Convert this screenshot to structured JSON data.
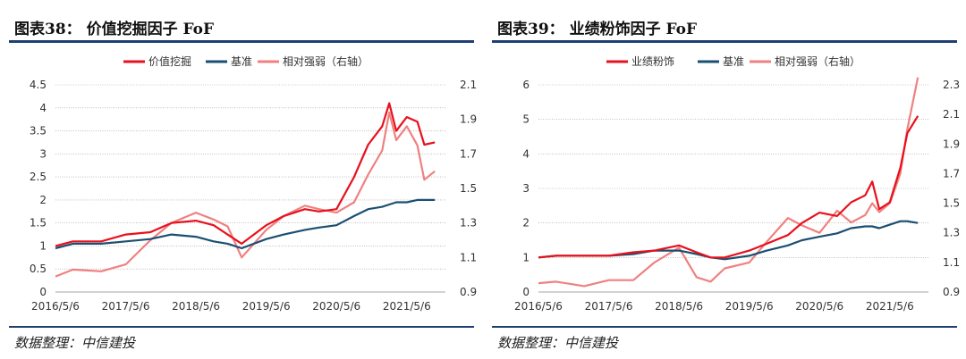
{
  "colors": {
    "rule": "#1f3f73",
    "factor": "#e8101c",
    "base": "#1b4f72",
    "rel": "#f08080"
  },
  "panels": [
    {
      "title": "图表38：  价值挖掘因子 FoF",
      "source": "数据整理：中信建投",
      "chart_data": {
        "type": "line",
        "legend": [
          "价值挖掘",
          "基准",
          "相对强弱（右轴）"
        ],
        "xticks": [
          "2016/5/6",
          "2017/5/6",
          "2018/5/6",
          "2019/5/6",
          "2020/5/6",
          "2021/5/6"
        ],
        "yticks_left": [
          "0",
          "0.5",
          "1",
          "1.5",
          "2",
          "2.5",
          "3",
          "3.5",
          "4",
          "4.5"
        ],
        "ylim_left": [
          0,
          4.5
        ],
        "yticks_right": [
          "0.9",
          "1.1",
          "1.3",
          "1.5",
          "1.7",
          "1.9",
          "2.1"
        ],
        "ylim_right": [
          0.9,
          2.1
        ],
        "x": [
          2016.35,
          2016.6,
          2017.0,
          2017.35,
          2017.7,
          2018.0,
          2018.35,
          2018.6,
          2018.8,
          2019.0,
          2019.35,
          2019.6,
          2019.9,
          2020.1,
          2020.35,
          2020.6,
          2020.8,
          2021.0,
          2021.1,
          2021.2,
          2021.35,
          2021.5,
          2021.6,
          2021.75
        ],
        "series": [
          {
            "name": "价值挖掘",
            "axis": "left",
            "values": [
              1.0,
              1.1,
              1.1,
              1.25,
              1.3,
              1.5,
              1.55,
              1.45,
              1.25,
              1.05,
              1.45,
              1.65,
              1.8,
              1.75,
              1.8,
              2.5,
              3.2,
              3.6,
              4.1,
              3.5,
              3.8,
              3.7,
              3.2,
              3.25
            ]
          },
          {
            "name": "基准",
            "axis": "left",
            "values": [
              0.95,
              1.05,
              1.05,
              1.1,
              1.15,
              1.25,
              1.2,
              1.1,
              1.05,
              0.95,
              1.15,
              1.25,
              1.35,
              1.4,
              1.45,
              1.65,
              1.8,
              1.85,
              1.9,
              1.95,
              1.95,
              2.0,
              2.0,
              2.0
            ]
          },
          {
            "name": "相对强弱（右轴）",
            "axis": "right",
            "values": [
              0.99,
              1.03,
              1.02,
              1.06,
              1.2,
              1.3,
              1.36,
              1.32,
              1.28,
              1.1,
              1.26,
              1.34,
              1.4,
              1.38,
              1.36,
              1.42,
              1.58,
              1.72,
              1.94,
              1.78,
              1.86,
              1.75,
              1.55,
              1.6
            ]
          }
        ]
      }
    },
    {
      "title": "图表39：  业绩粉饰因子 FoF",
      "source": "数据整理：中信建投",
      "chart_data": {
        "type": "line",
        "legend": [
          "业绩粉饰",
          "基准",
          "相对强弱（右轴）"
        ],
        "xticks": [
          "2016/5/6",
          "2017/5/6",
          "2018/5/6",
          "2019/5/6",
          "2020/5/6",
          "2021/5/6"
        ],
        "yticks_left": [
          "0",
          "1",
          "2",
          "3",
          "4",
          "5",
          "6"
        ],
        "ylim_left": [
          0,
          6
        ],
        "yticks_right": [
          "0.9",
          "1.1",
          "1.3",
          "1.5",
          "1.7",
          "1.9",
          "2.1",
          "2.3"
        ],
        "ylim_right": [
          0.9,
          2.3
        ],
        "x": [
          2016.35,
          2016.6,
          2017.0,
          2017.35,
          2017.7,
          2018.0,
          2018.35,
          2018.6,
          2018.8,
          2019.0,
          2019.35,
          2019.6,
          2019.9,
          2020.1,
          2020.35,
          2020.6,
          2020.8,
          2021.0,
          2021.1,
          2021.2,
          2021.35,
          2021.5,
          2021.6,
          2021.75
        ],
        "series": [
          {
            "name": "业绩粉饰",
            "axis": "left",
            "values": [
              1.0,
              1.05,
              1.05,
              1.05,
              1.15,
              1.2,
              1.35,
              1.15,
              1.0,
              1.0,
              1.2,
              1.4,
              1.65,
              2.0,
              2.3,
              2.2,
              2.6,
              2.8,
              3.2,
              2.4,
              2.6,
              3.6,
              4.6,
              5.1
            ]
          },
          {
            "name": "基准",
            "axis": "left",
            "values": [
              1.0,
              1.05,
              1.05,
              1.05,
              1.1,
              1.2,
              1.2,
              1.1,
              1.0,
              0.95,
              1.05,
              1.2,
              1.35,
              1.5,
              1.6,
              1.7,
              1.85,
              1.9,
              1.9,
              1.85,
              1.95,
              2.05,
              2.05,
              2.0
            ]
          },
          {
            "name": "相对强弱（右轴）",
            "axis": "right",
            "values": [
              0.96,
              0.97,
              0.94,
              0.98,
              0.98,
              1.1,
              1.2,
              1.0,
              0.97,
              1.06,
              1.1,
              1.24,
              1.4,
              1.35,
              1.3,
              1.45,
              1.37,
              1.42,
              1.5,
              1.44,
              1.5,
              1.7,
              2.0,
              2.35
            ]
          }
        ]
      }
    }
  ]
}
